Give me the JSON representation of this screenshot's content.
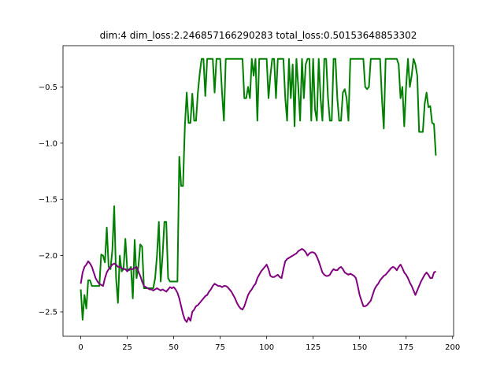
{
  "chart_data": {
    "type": "line",
    "title": "dim:4 dim_loss:2.246857166290283 total_loss:0.50153648853302",
    "x": [
      0,
      1,
      2,
      3,
      4,
      5,
      6,
      7,
      8,
      9,
      10,
      11,
      12,
      13,
      14,
      15,
      16,
      17,
      18,
      19,
      20,
      21,
      22,
      23,
      24,
      25,
      26,
      27,
      28,
      29,
      30,
      31,
      32,
      33,
      34,
      35,
      36,
      37,
      38,
      39,
      40,
      41,
      42,
      43,
      44,
      45,
      46,
      47,
      48,
      49,
      50,
      51,
      52,
      53,
      54,
      55,
      56,
      57,
      58,
      59,
      60,
      61,
      62,
      63,
      64,
      65,
      66,
      67,
      68,
      69,
      70,
      71,
      72,
      73,
      74,
      75,
      76,
      77,
      78,
      79,
      80,
      81,
      82,
      83,
      84,
      85,
      86,
      87,
      88,
      89,
      90,
      91,
      92,
      93,
      94,
      95,
      96,
      97,
      98,
      99,
      100,
      101,
      102,
      103,
      104,
      105,
      106,
      107,
      108,
      109,
      110,
      111,
      112,
      113,
      114,
      115,
      116,
      117,
      118,
      119,
      120,
      121,
      122,
      123,
      124,
      125,
      126,
      127,
      128,
      129,
      130,
      131,
      132,
      133,
      134,
      135,
      136,
      137,
      138,
      139,
      140,
      141,
      142,
      143,
      144,
      145,
      146,
      147,
      148,
      149,
      150,
      151,
      152,
      153,
      154,
      155,
      156,
      157,
      158,
      159,
      160,
      161,
      162,
      163,
      164,
      165,
      166,
      167,
      168,
      169,
      170,
      171,
      172,
      173,
      174,
      175,
      176,
      177,
      178,
      179,
      180,
      181,
      182,
      183,
      184,
      185,
      186,
      187,
      188,
      189,
      190,
      191
    ],
    "series": [
      {
        "color": "#008000",
        "values": [
          -2.3,
          -2.57,
          -2.35,
          -2.47,
          -2.22,
          -2.22,
          -2.27,
          -2.27,
          -2.27,
          -2.27,
          -2.27,
          -1.99,
          -2.0,
          -2.06,
          -1.75,
          -2.1,
          -2.12,
          -1.95,
          -1.56,
          -2.2,
          -2.42,
          -2.0,
          -2.14,
          -2.12,
          -1.85,
          -2.12,
          -2.13,
          -2.1,
          -2.38,
          -1.86,
          -2.2,
          -2.1,
          -1.9,
          -1.92,
          -2.29,
          -2.29,
          -2.29,
          -2.29,
          -2.29,
          -2.29,
          -2.2,
          -2.0,
          -1.7,
          -2.23,
          -2.0,
          -1.7,
          -1.7,
          -2.2,
          -2.23,
          -2.23,
          -2.23,
          -2.23,
          -2.23,
          -1.12,
          -1.38,
          -1.38,
          -0.85,
          -0.55,
          -0.82,
          -0.82,
          -0.56,
          -0.8,
          -0.8,
          -0.55,
          -0.38,
          -0.25,
          -0.25,
          -0.58,
          -0.25,
          -0.25,
          -0.25,
          -0.25,
          -0.55,
          -0.25,
          -0.25,
          -0.25,
          -0.55,
          -0.8,
          -0.25,
          -0.25,
          -0.25,
          -0.25,
          -0.25,
          -0.25,
          -0.25,
          -0.25,
          -0.25,
          -0.25,
          -0.6,
          -0.6,
          -0.5,
          -0.6,
          -0.25,
          -0.4,
          -0.25,
          -0.8,
          -0.25,
          -0.25,
          -0.25,
          -0.25,
          -0.25,
          -0.6,
          -0.4,
          -0.25,
          -0.25,
          -0.6,
          -0.25,
          -0.25,
          -0.25,
          -0.25,
          -0.6,
          -0.8,
          -0.25,
          -0.6,
          -0.3,
          -0.85,
          -0.25,
          -0.5,
          -0.8,
          -0.25,
          -0.6,
          -0.3,
          -0.25,
          -0.25,
          -0.8,
          -0.25,
          -0.7,
          -0.8,
          -0.25,
          -0.6,
          -0.8,
          -0.25,
          -0.25,
          -0.6,
          -0.8,
          -0.8,
          -0.25,
          -0.25,
          -0.6,
          -0.8,
          -0.8,
          -0.55,
          -0.52,
          -0.6,
          -0.8,
          -0.25,
          -0.25,
          -0.25,
          -0.25,
          -0.25,
          -0.25,
          -0.25,
          -0.25,
          -0.5,
          -0.52,
          -0.5,
          -0.25,
          -0.25,
          -0.25,
          -0.25,
          -0.25,
          -0.25,
          -0.6,
          -0.87,
          -0.25,
          -0.25,
          -0.25,
          -0.25,
          -0.25,
          -0.25,
          -0.25,
          -0.3,
          -0.6,
          -0.5,
          -0.85,
          -0.5,
          -0.25,
          -0.5,
          -0.4,
          -0.25,
          -0.3,
          -0.4,
          -0.9,
          -0.9,
          -0.9,
          -0.65,
          -0.55,
          -0.68,
          -0.67,
          -0.82,
          -0.83,
          -1.11
        ]
      },
      {
        "color": "#800080",
        "values": [
          -2.25,
          -2.15,
          -2.1,
          -2.08,
          -2.05,
          -2.07,
          -2.1,
          -2.15,
          -2.2,
          -2.23,
          -2.25,
          -2.26,
          -2.27,
          -2.2,
          -2.15,
          -2.12,
          -2.1,
          -2.08,
          -2.07,
          -2.08,
          -2.1,
          -2.1,
          -2.11,
          -2.12,
          -2.12,
          -2.14,
          -2.12,
          -2.12,
          -2.12,
          -2.11,
          -2.1,
          -2.14,
          -2.18,
          -2.23,
          -2.27,
          -2.28,
          -2.29,
          -2.3,
          -2.3,
          -2.31,
          -2.3,
          -2.29,
          -2.3,
          -2.31,
          -2.3,
          -2.31,
          -2.32,
          -2.3,
          -2.28,
          -2.29,
          -2.28,
          -2.3,
          -2.33,
          -2.38,
          -2.45,
          -2.52,
          -2.57,
          -2.59,
          -2.55,
          -2.58,
          -2.5,
          -2.48,
          -2.45,
          -2.44,
          -2.42,
          -2.4,
          -2.38,
          -2.36,
          -2.35,
          -2.32,
          -2.3,
          -2.27,
          -2.25,
          -2.26,
          -2.27,
          -2.27,
          -2.28,
          -2.27,
          -2.27,
          -2.28,
          -2.3,
          -2.32,
          -2.35,
          -2.38,
          -2.42,
          -2.45,
          -2.47,
          -2.48,
          -2.45,
          -2.4,
          -2.35,
          -2.32,
          -2.3,
          -2.27,
          -2.25,
          -2.2,
          -2.17,
          -2.14,
          -2.12,
          -2.1,
          -2.08,
          -2.12,
          -2.18,
          -2.19,
          -2.19,
          -2.18,
          -2.17,
          -2.19,
          -2.2,
          -2.12,
          -2.05,
          -2.03,
          -2.02,
          -2.01,
          -2.0,
          -1.99,
          -1.98,
          -1.96,
          -1.95,
          -1.94,
          -1.95,
          -1.97,
          -2.0,
          -1.98,
          -1.97,
          -1.97,
          -1.98,
          -2.01,
          -2.05,
          -2.1,
          -2.15,
          -2.17,
          -2.18,
          -2.18,
          -2.17,
          -2.14,
          -2.12,
          -2.13,
          -2.13,
          -2.11,
          -2.1,
          -2.12,
          -2.15,
          -2.16,
          -2.17,
          -2.16,
          -2.17,
          -2.18,
          -2.2,
          -2.27,
          -2.35,
          -2.4,
          -2.45,
          -2.45,
          -2.44,
          -2.42,
          -2.4,
          -2.35,
          -2.3,
          -2.27,
          -2.25,
          -2.22,
          -2.2,
          -2.18,
          -2.17,
          -2.15,
          -2.13,
          -2.11,
          -2.1,
          -2.11,
          -2.13,
          -2.1,
          -2.08,
          -2.11,
          -2.15,
          -2.17,
          -2.2,
          -2.24,
          -2.27,
          -2.31,
          -2.35,
          -2.31,
          -2.27,
          -2.23,
          -2.2,
          -2.17,
          -2.15,
          -2.17,
          -2.2,
          -2.2,
          -2.15,
          -2.14
        ]
      }
    ],
    "xlim": [
      -9.55,
      200.55
    ],
    "ylim": [
      -2.717,
      -0.133
    ],
    "xticks": [
      0,
      25,
      50,
      75,
      100,
      125,
      150,
      175,
      200
    ],
    "yticks": [
      {
        "value": -2.5,
        "label": "−2.5"
      },
      {
        "value": -2.0,
        "label": "−2.0"
      },
      {
        "value": -1.5,
        "label": "−1.5"
      },
      {
        "value": -1.0,
        "label": "−1.0"
      },
      {
        "value": -0.5,
        "label": "−0.5"
      }
    ]
  }
}
